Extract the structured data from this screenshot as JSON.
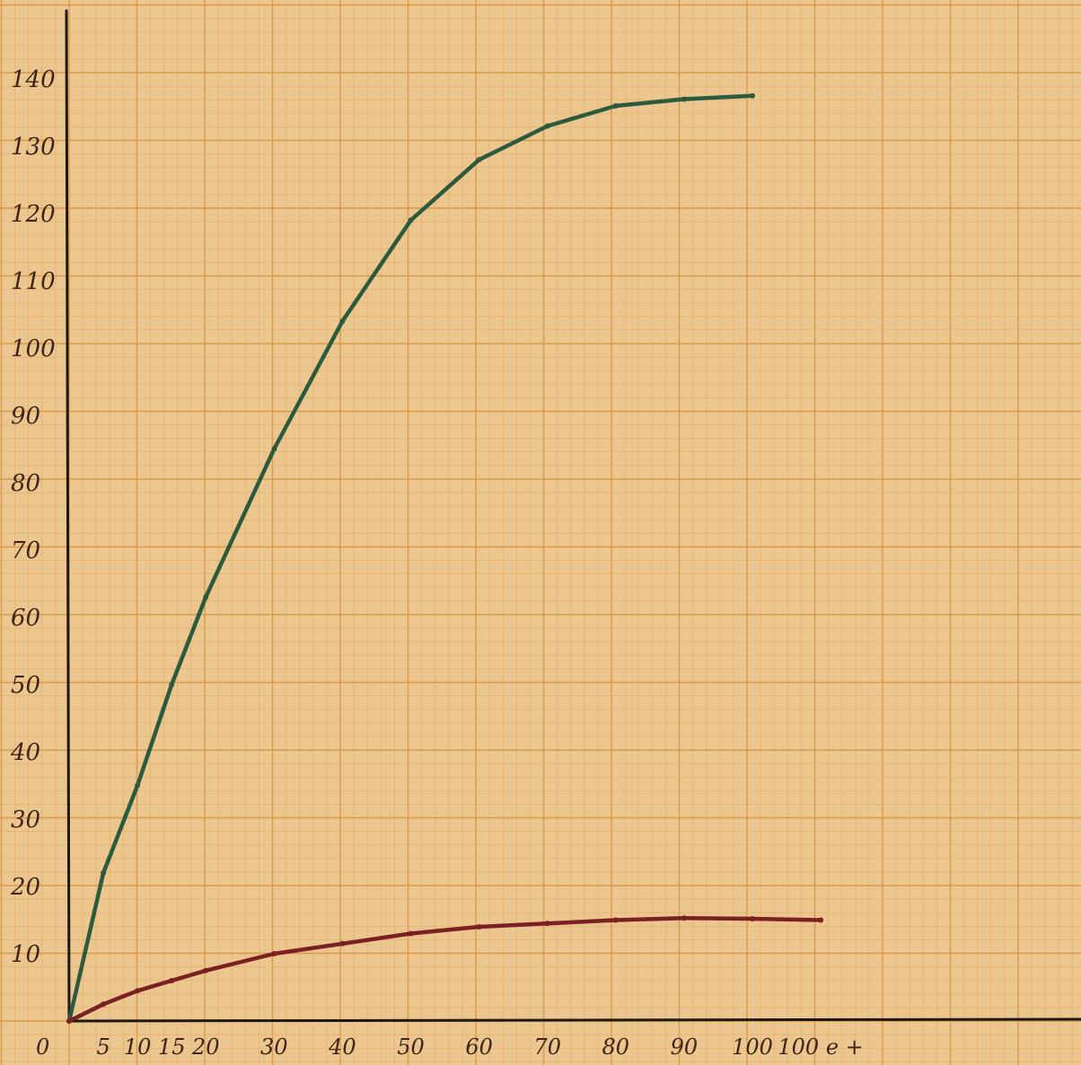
{
  "chart_data": {
    "type": "line",
    "title": "",
    "xlabel": "",
    "ylabel": "",
    "grid": true,
    "x_tick_labels": [
      {
        "x": 0,
        "label": "0"
      },
      {
        "x": 5,
        "label": "5"
      },
      {
        "x": 10,
        "label": "10"
      },
      {
        "x": 15,
        "label": "15"
      },
      {
        "x": 20,
        "label": "20"
      },
      {
        "x": 30,
        "label": "30"
      },
      {
        "x": 40,
        "label": "40"
      },
      {
        "x": 50,
        "label": "50"
      },
      {
        "x": 60,
        "label": "60"
      },
      {
        "x": 70,
        "label": "70"
      },
      {
        "x": 80,
        "label": "80"
      },
      {
        "x": 90,
        "label": "90"
      },
      {
        "x": 100,
        "label": "100"
      },
      {
        "x": 110,
        "label": "100 e +"
      }
    ],
    "y_ticks": [
      10,
      20,
      30,
      40,
      50,
      60,
      70,
      80,
      90,
      100,
      110,
      120,
      130,
      140
    ],
    "xlim": [
      0,
      147
    ],
    "ylim": [
      0,
      149
    ],
    "series": [
      {
        "color": "#2b5a3c",
        "points": [
          [
            0,
            0
          ],
          [
            5,
            22
          ],
          [
            10,
            35
          ],
          [
            15,
            50
          ],
          [
            20,
            63
          ],
          [
            30,
            85
          ],
          [
            40,
            104
          ],
          [
            50,
            119
          ],
          [
            60,
            128
          ],
          [
            70,
            133
          ],
          [
            80,
            136
          ],
          [
            90,
            137
          ],
          [
            100,
            137.5
          ]
        ]
      },
      {
        "color": "#7a1f22",
        "points": [
          [
            0,
            0
          ],
          [
            5,
            2.5
          ],
          [
            10,
            4.5
          ],
          [
            15,
            6
          ],
          [
            20,
            7.5
          ],
          [
            30,
            10
          ],
          [
            40,
            11.5
          ],
          [
            50,
            13
          ],
          [
            60,
            14
          ],
          [
            70,
            14.5
          ],
          [
            80,
            15
          ],
          [
            90,
            15.3
          ],
          [
            100,
            15.2
          ],
          [
            110,
            15
          ]
        ]
      }
    ],
    "colors": {
      "paper": "#ecc68f",
      "grid_minor": "#e2b06a",
      "grid_major": "#d89a4c",
      "axis": "#1e1812",
      "label": "#3d2416"
    }
  }
}
